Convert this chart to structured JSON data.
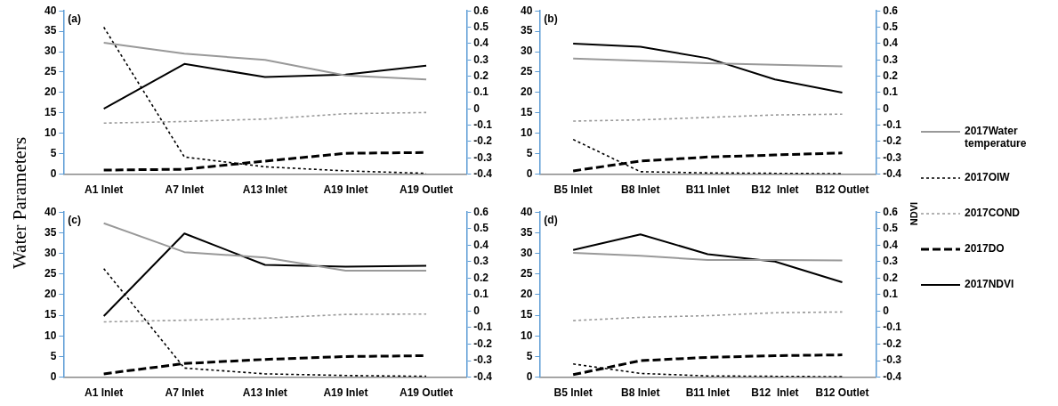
{
  "chart_data": [
    {
      "type": "line",
      "title": "(a)",
      "ylabel": "Water Parameters",
      "legend": "right",
      "categories": [
        "A1 Inlet",
        "A7 Inlet",
        "A13 Inlet",
        "A19 Inlet",
        "A19 Outlet"
      ],
      "ylim": [
        0,
        40
      ],
      "yticks": [
        0,
        5,
        10,
        15,
        20,
        25,
        30,
        35,
        40
      ],
      "y2lim": [
        -0.4,
        0.6
      ],
      "y2ticks": [
        -0.4,
        -0.3,
        -0.2,
        -0.1,
        0,
        0.1,
        0.2,
        0.3,
        0.4,
        0.5,
        0.6
      ],
      "marker": "none",
      "series": [
        {
          "name": "2017Water temperature",
          "color": "#999999",
          "line_style": "solid",
          "values": [
            32.2,
            29.5,
            28.0,
            24.2,
            23.2
          ]
        },
        {
          "name": "2017OIW",
          "color": "#000000",
          "line_style": "dotted",
          "values": [
            36,
            4.2,
            1.8,
            0.8,
            0.2
          ]
        },
        {
          "name": "2017COND",
          "color": "#999999",
          "line_style": "dotted",
          "values": [
            12.5,
            12.9,
            13.5,
            14.8,
            15.1
          ]
        },
        {
          "name": "2017DO",
          "color": "#000000",
          "line_style": "dashed",
          "values": [
            1.0,
            1.2,
            3.2,
            5.1,
            5.3
          ]
        },
        {
          "name": "2017NDVI",
          "color": "#000000",
          "line_style": "solid",
          "axis": "y2",
          "values": [
            0.0,
            0.275,
            0.195,
            0.21,
            0.265
          ]
        }
      ]
    },
    {
      "type": "line",
      "title": "(b)",
      "y2label": "NDVI",
      "categories": [
        "B5 Inlet",
        "B8 Inlet",
        "B11 Inlet",
        "B12  Inlet",
        "B12 Outlet"
      ],
      "ylim": [
        0,
        40
      ],
      "yticks": [
        0,
        5,
        10,
        15,
        20,
        25,
        30,
        35,
        40
      ],
      "y2lim": [
        -0.4,
        0.6
      ],
      "y2ticks": [
        -0.4,
        -0.3,
        -0.2,
        -0.1,
        0,
        0.1,
        0.2,
        0.3,
        0.4,
        0.5,
        0.6
      ],
      "marker": "none",
      "series": [
        {
          "color": "#999999",
          "line_style": "solid",
          "values": [
            28.3,
            27.8,
            27.2,
            26.8,
            26.4
          ]
        },
        {
          "color": "#000000",
          "line_style": "dotted",
          "values": [
            8.5,
            0.6,
            0.3,
            0.2,
            0.1
          ]
        },
        {
          "color": "#999999",
          "line_style": "dotted",
          "values": [
            13.0,
            13.3,
            13.9,
            14.5,
            14.7
          ]
        },
        {
          "color": "#000000",
          "line_style": "dashed",
          "values": [
            0.8,
            3.2,
            4.2,
            4.7,
            5.2
          ]
        },
        {
          "color": "#000000",
          "line_style": "solid",
          "axis": "y2",
          "values": [
            0.4,
            0.38,
            0.31,
            0.18,
            0.1
          ]
        }
      ]
    },
    {
      "type": "line",
      "title": "(c)",
      "categories": [
        "A1 Inlet",
        "A7 Inlet",
        "A13 Inlet",
        "A19 Inlet",
        "A19 Outlet"
      ],
      "ylim": [
        0,
        40
      ],
      "yticks": [
        0,
        5,
        10,
        15,
        20,
        25,
        30,
        35,
        40
      ],
      "y2lim": [
        -0.4,
        0.6
      ],
      "y2ticks": [
        -0.4,
        -0.3,
        -0.2,
        -0.1,
        0,
        0.1,
        0.2,
        0.3,
        0.4,
        0.5,
        0.6
      ],
      "marker": "none",
      "series": [
        {
          "color": "#999999",
          "line_style": "solid",
          "values": [
            37.3,
            30.3,
            29.0,
            25.8,
            25.8
          ]
        },
        {
          "color": "#000000",
          "line_style": "dotted",
          "values": [
            26.3,
            2.2,
            0.8,
            0.4,
            0.2
          ]
        },
        {
          "color": "#999999",
          "line_style": "dotted",
          "values": [
            13.4,
            13.8,
            14.3,
            15.2,
            15.3
          ]
        },
        {
          "color": "#000000",
          "line_style": "dashed",
          "values": [
            0.8,
            3.3,
            4.3,
            5.0,
            5.2
          ]
        },
        {
          "color": "#000000",
          "line_style": "solid",
          "axis": "y2",
          "values": [
            -0.03,
            0.47,
            0.28,
            0.27,
            0.275
          ]
        }
      ]
    },
    {
      "type": "line",
      "title": "(d)",
      "categories": [
        "B5 Inlet",
        "B8 Inlet",
        "B11 Inlet",
        "B12  Inlet",
        "B12 Outlet"
      ],
      "ylim": [
        0,
        40
      ],
      "yticks": [
        0,
        5,
        10,
        15,
        20,
        25,
        30,
        35,
        40
      ],
      "y2lim": [
        -0.4,
        0.6
      ],
      "y2ticks": [
        -0.4,
        -0.3,
        -0.2,
        -0.1,
        0,
        0.1,
        0.2,
        0.3,
        0.4,
        0.5,
        0.6
      ],
      "marker": "none",
      "series": [
        {
          "color": "#999999",
          "line_style": "solid",
          "values": [
            30.1,
            29.4,
            28.4,
            28.4,
            28.3
          ]
        },
        {
          "color": "#000000",
          "line_style": "dotted",
          "values": [
            3.2,
            0.9,
            0.3,
            0.2,
            0.1
          ]
        },
        {
          "color": "#999999",
          "line_style": "dotted",
          "values": [
            13.7,
            14.5,
            14.9,
            15.6,
            15.8
          ]
        },
        {
          "color": "#000000",
          "line_style": "dashed",
          "values": [
            0.6,
            4.0,
            4.8,
            5.2,
            5.4
          ]
        },
        {
          "color": "#000000",
          "line_style": "solid",
          "axis": "y2",
          "values": [
            0.37,
            0.465,
            0.345,
            0.3,
            0.175
          ]
        }
      ]
    }
  ]
}
